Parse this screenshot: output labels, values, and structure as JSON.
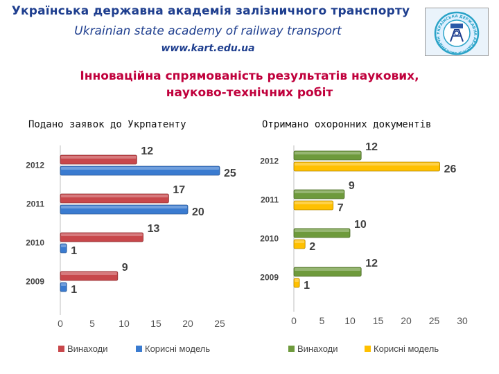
{
  "header": {
    "institution_ua": "Українська державна академія залізничного транспорту",
    "institution_en": "Ukrainian state academy of railway transport",
    "website": "www.kart.edu.ua"
  },
  "logo": {
    "icon": "academy-seal-icon",
    "text": "УКРАЇНСЬКА ДЕРЖАВНА АКАДЕМІЯ ЗАЛІЗНИЧНОГО ТРАНСПОРТУ"
  },
  "slide": {
    "title_line1": "Інноваційна спрямованість результатів наукових,",
    "title_line2": "науково-технічних робіт"
  },
  "colors": {
    "header_text": "#1f3f8f",
    "title_text": "#c0003c",
    "red_series": "#c8474b",
    "blue_series": "#3a7bd0",
    "green_series": "#6e9a3c",
    "yellow_series": "#ffc000"
  },
  "chart_data": [
    {
      "type": "bar",
      "orientation": "horizontal",
      "title": "Подано заявок до Укрпатенту",
      "categories": [
        "2012",
        "2011",
        "2010",
        "2009"
      ],
      "series": [
        {
          "name": "Винаходи",
          "color": "#c8474b",
          "values": [
            12,
            17,
            13,
            9
          ]
        },
        {
          "name": "Корисні модель",
          "color": "#3a7bd0",
          "values": [
            25,
            20,
            1,
            1
          ]
        }
      ],
      "xlim": [
        0,
        25
      ],
      "xticks": [
        "0",
        "5",
        "10",
        "15",
        "20",
        "25"
      ],
      "grid": false,
      "legend": "bottom"
    },
    {
      "type": "bar",
      "orientation": "horizontal",
      "title": "Отримано охоронних документів",
      "categories": [
        "2012",
        "2011",
        "2010",
        "2009"
      ],
      "series": [
        {
          "name": "Винаходи",
          "color": "#6e9a3c",
          "values": [
            12,
            9,
            10,
            12
          ]
        },
        {
          "name": "Корисні модель",
          "color": "#ffc000",
          "values": [
            26,
            7,
            2,
            1
          ]
        }
      ],
      "xlim": [
        0,
        30
      ],
      "xticks": [
        "0",
        "5",
        "10",
        "15",
        "20",
        "25",
        "30"
      ],
      "grid": false,
      "legend": "bottom"
    }
  ]
}
